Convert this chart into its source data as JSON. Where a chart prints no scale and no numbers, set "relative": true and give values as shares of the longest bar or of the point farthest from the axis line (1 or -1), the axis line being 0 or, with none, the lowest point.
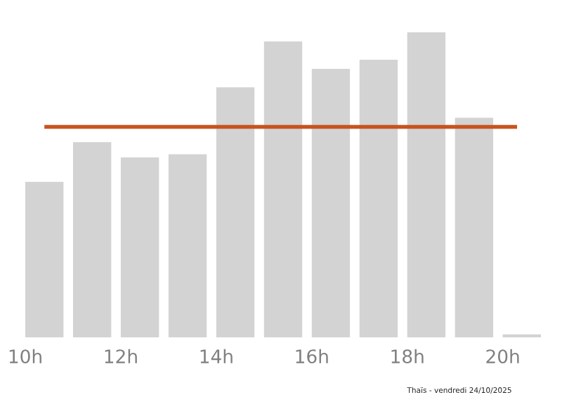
{
  "chart_data": {
    "type": "bar",
    "relative": true,
    "x": [
      10.4,
      11.4,
      12.4,
      13.4,
      14.4,
      15.4,
      16.4,
      17.4,
      18.4,
      19.4,
      20.4
    ],
    "values": [
      0.51,
      0.64,
      0.59,
      0.6,
      0.82,
      0.97,
      0.88,
      0.91,
      1,
      0.72,
      0.01
    ],
    "color": "#d3d3d3",
    "xlim": [
      10,
      20.8
    ],
    "xticks": [
      {
        "value": 10,
        "label": "10h"
      },
      {
        "value": 12,
        "label": "12h"
      },
      {
        "value": 14,
        "label": "14h"
      },
      {
        "value": 16,
        "label": "16h"
      },
      {
        "value": 18,
        "label": "18h"
      },
      {
        "value": 20,
        "label": "20h"
      }
    ],
    "ref_lines": [
      {
        "axis": "y",
        "value": 0.69,
        "color": "#c8541e"
      }
    ],
    "annotations": [
      "Thaïs - vendredi 24/10/2025"
    ],
    "grid": false,
    "legend": false
  }
}
